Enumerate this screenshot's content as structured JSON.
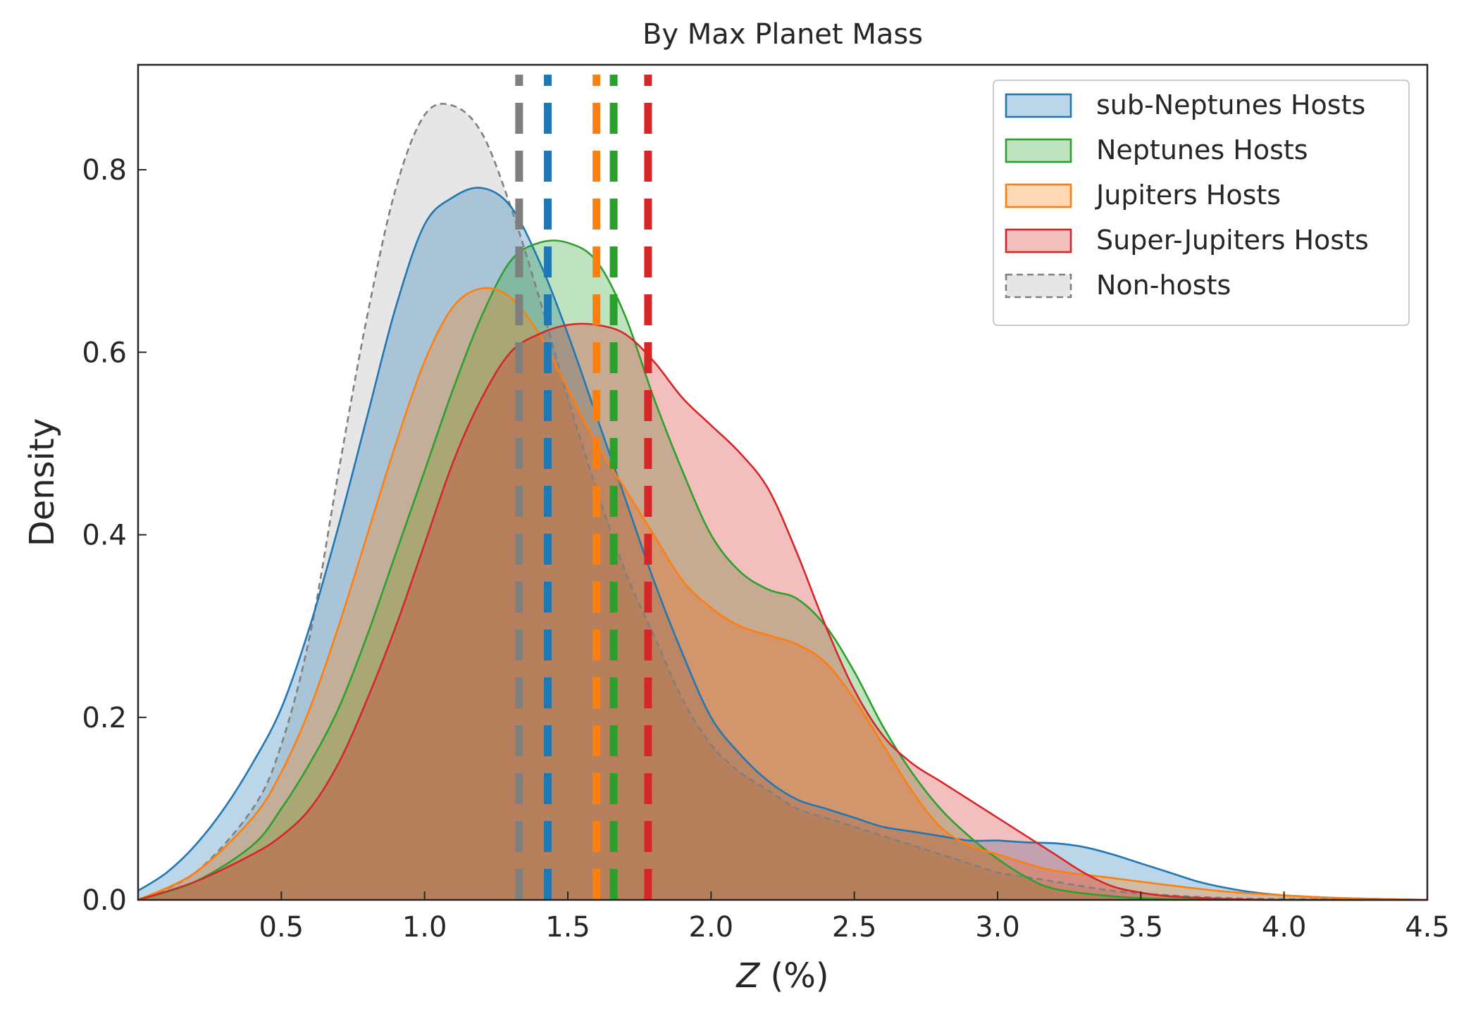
{
  "chart_data": {
    "type": "area",
    "title": "By Max Planet Mass",
    "xlabel_var": "Z",
    "xlabel_unit": " (%)",
    "ylabel": "Density",
    "xlim": [
      0.0,
      4.5
    ],
    "ylim": [
      0.0,
      0.915
    ],
    "xticks": [
      0.5,
      1.0,
      1.5,
      2.0,
      2.5,
      3.0,
      3.5,
      4.0,
      4.5
    ],
    "xtick_labels": [
      "0.5",
      "1.0",
      "1.5",
      "2.0",
      "2.5",
      "3.0",
      "3.5",
      "4.0",
      "4.5"
    ],
    "yticks": [
      0.0,
      0.2,
      0.4,
      0.6,
      0.8
    ],
    "ytick_labels": [
      "0.0",
      "0.2",
      "0.4",
      "0.6",
      "0.8"
    ],
    "grid": false,
    "legend_position": "top-right",
    "series": [
      {
        "name": "sub-Neptunes Hosts",
        "color": "#1f77b4",
        "median": 1.43,
        "x": [
          0.0,
          0.1,
          0.2,
          0.3,
          0.4,
          0.5,
          0.6,
          0.7,
          0.8,
          0.9,
          1.0,
          1.1,
          1.2,
          1.3,
          1.4,
          1.5,
          1.6,
          1.7,
          1.8,
          1.9,
          2.0,
          2.1,
          2.2,
          2.3,
          2.4,
          2.5,
          2.6,
          2.7,
          2.8,
          2.9,
          3.0,
          3.1,
          3.2,
          3.3,
          3.4,
          3.5,
          3.6,
          3.7,
          3.8,
          3.9,
          4.0,
          4.2,
          4.5
        ],
        "y": [
          0.01,
          0.03,
          0.06,
          0.1,
          0.15,
          0.21,
          0.3,
          0.41,
          0.53,
          0.65,
          0.74,
          0.77,
          0.78,
          0.76,
          0.7,
          0.62,
          0.53,
          0.44,
          0.35,
          0.27,
          0.2,
          0.16,
          0.13,
          0.11,
          0.1,
          0.09,
          0.08,
          0.075,
          0.07,
          0.065,
          0.065,
          0.063,
          0.062,
          0.058,
          0.05,
          0.04,
          0.03,
          0.02,
          0.013,
          0.008,
          0.005,
          0.002,
          0.0
        ]
      },
      {
        "name": "Neptunes Hosts",
        "color": "#2ca02c",
        "median": 1.66,
        "x": [
          0.0,
          0.2,
          0.4,
          0.5,
          0.6,
          0.7,
          0.8,
          0.9,
          1.0,
          1.1,
          1.2,
          1.3,
          1.4,
          1.5,
          1.6,
          1.7,
          1.8,
          1.9,
          2.0,
          2.1,
          2.2,
          2.3,
          2.4,
          2.5,
          2.6,
          2.7,
          2.8,
          2.9,
          3.0,
          3.1,
          3.2,
          3.4,
          3.6,
          4.0,
          4.5
        ],
        "y": [
          0.0,
          0.02,
          0.06,
          0.1,
          0.15,
          0.21,
          0.29,
          0.38,
          0.47,
          0.56,
          0.64,
          0.7,
          0.72,
          0.72,
          0.7,
          0.64,
          0.55,
          0.47,
          0.4,
          0.36,
          0.34,
          0.33,
          0.3,
          0.25,
          0.19,
          0.14,
          0.1,
          0.07,
          0.045,
          0.025,
          0.012,
          0.004,
          0.001,
          0.0,
          0.0
        ]
      },
      {
        "name": "Jupiters Hosts",
        "color": "#ff7f0e",
        "median": 1.6,
        "x": [
          0.0,
          0.2,
          0.4,
          0.5,
          0.6,
          0.7,
          0.8,
          0.9,
          1.0,
          1.1,
          1.2,
          1.3,
          1.4,
          1.5,
          1.6,
          1.7,
          1.8,
          1.9,
          2.0,
          2.1,
          2.2,
          2.3,
          2.4,
          2.5,
          2.6,
          2.7,
          2.8,
          2.9,
          3.0,
          3.1,
          3.2,
          3.4,
          3.6,
          3.8,
          4.0,
          4.2,
          4.5
        ],
        "y": [
          0.0,
          0.03,
          0.09,
          0.14,
          0.21,
          0.3,
          0.4,
          0.5,
          0.59,
          0.65,
          0.67,
          0.66,
          0.62,
          0.56,
          0.5,
          0.45,
          0.4,
          0.35,
          0.32,
          0.3,
          0.29,
          0.28,
          0.26,
          0.22,
          0.17,
          0.12,
          0.08,
          0.06,
          0.05,
          0.04,
          0.032,
          0.024,
          0.016,
          0.009,
          0.005,
          0.002,
          0.0
        ]
      },
      {
        "name": "Super-Jupiters Hosts",
        "color": "#d62728",
        "median": 1.78,
        "x": [
          0.0,
          0.2,
          0.4,
          0.5,
          0.6,
          0.7,
          0.8,
          0.9,
          1.0,
          1.1,
          1.2,
          1.3,
          1.4,
          1.5,
          1.6,
          1.7,
          1.8,
          1.9,
          2.0,
          2.1,
          2.2,
          2.3,
          2.4,
          2.5,
          2.6,
          2.7,
          2.8,
          2.9,
          3.0,
          3.1,
          3.2,
          3.3,
          3.4,
          3.5,
          3.6,
          3.8,
          4.0,
          4.5
        ],
        "y": [
          0.0,
          0.02,
          0.05,
          0.07,
          0.1,
          0.15,
          0.22,
          0.3,
          0.39,
          0.48,
          0.55,
          0.6,
          0.62,
          0.63,
          0.63,
          0.62,
          0.59,
          0.55,
          0.52,
          0.49,
          0.45,
          0.38,
          0.3,
          0.23,
          0.18,
          0.15,
          0.13,
          0.11,
          0.09,
          0.07,
          0.05,
          0.03,
          0.015,
          0.008,
          0.004,
          0.001,
          0.0,
          0.0
        ]
      },
      {
        "name": "Non-hosts",
        "color": "#7f7f7f",
        "median": 1.33,
        "x": [
          0.0,
          0.2,
          0.4,
          0.5,
          0.6,
          0.7,
          0.8,
          0.9,
          1.0,
          1.1,
          1.2,
          1.3,
          1.4,
          1.5,
          1.6,
          1.7,
          1.8,
          1.9,
          2.0,
          2.1,
          2.2,
          2.3,
          2.4,
          2.5,
          2.6,
          2.7,
          2.8,
          2.9,
          3.0,
          3.1,
          3.2,
          3.4,
          3.6,
          3.8,
          4.0,
          4.5
        ],
        "y": [
          0.0,
          0.03,
          0.1,
          0.17,
          0.29,
          0.47,
          0.64,
          0.78,
          0.86,
          0.87,
          0.84,
          0.76,
          0.66,
          0.55,
          0.45,
          0.36,
          0.29,
          0.22,
          0.17,
          0.14,
          0.12,
          0.1,
          0.09,
          0.08,
          0.07,
          0.06,
          0.05,
          0.04,
          0.03,
          0.025,
          0.02,
          0.01,
          0.005,
          0.002,
          0.001,
          0.0
        ]
      }
    ]
  }
}
